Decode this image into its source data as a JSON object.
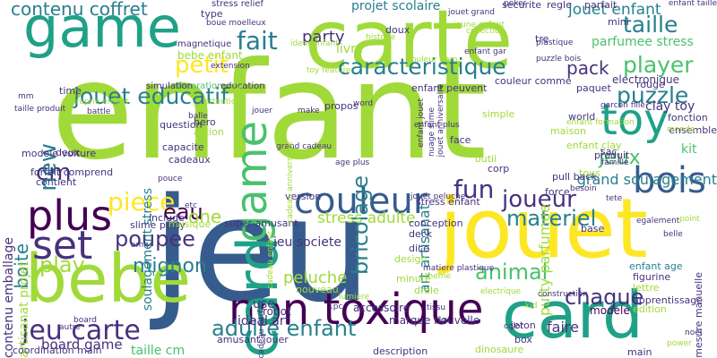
{
  "word_cloud": {
    "palette": {
      "yellow": "#fde725",
      "lime": "#a0da39",
      "green": "#4ac16d",
      "teal": "#1fa187",
      "cyan": "#277f8e",
      "blue": "#365c8d",
      "indigo": "#46327e",
      "purple": "#440154"
    },
    "words": [
      {
        "text": "enfant",
        "color": "lime"
      },
      {
        "text": "jeu",
        "color": "blue"
      },
      {
        "text": "game",
        "color": "teal"
      },
      {
        "text": "carte",
        "color": "lime"
      },
      {
        "text": "jouet",
        "color": "yellow"
      },
      {
        "text": "card",
        "color": "teal"
      },
      {
        "text": "bebe",
        "color": "lime"
      },
      {
        "text": "non toxique",
        "color": "purple"
      },
      {
        "text": "plus",
        "color": "purple"
      },
      {
        "text": "couleur",
        "color": "blue"
      },
      {
        "text": "bois",
        "color": "blue"
      },
      {
        "text": "toy",
        "color": "teal"
      },
      {
        "text": "card",
        "color": "teal"
      },
      {
        "text": "jeu carte",
        "color": "indigo"
      },
      {
        "text": "set",
        "color": "indigo"
      },
      {
        "text": "jouet educatif",
        "color": "cyan"
      },
      {
        "text": "caracteristique",
        "color": "cyan"
      },
      {
        "text": "game",
        "color": "green"
      },
      {
        "text": "taille",
        "color": "cyan"
      },
      {
        "text": "player",
        "color": "green"
      },
      {
        "text": "puzzle",
        "color": "cyan"
      },
      {
        "text": "fun",
        "color": "indigo"
      },
      {
        "text": "joueur",
        "color": "indigo"
      },
      {
        "text": "contenu coffret",
        "color": "cyan"
      },
      {
        "text": "fait",
        "color": "cyan"
      },
      {
        "text": "petit",
        "color": "yellow"
      },
      {
        "text": "piece",
        "color": "yellow"
      },
      {
        "text": "poupee",
        "color": "indigo"
      },
      {
        "text": "play",
        "color": "lime"
      },
      {
        "text": "materiel",
        "color": "cyan"
      },
      {
        "text": "mignon",
        "color": "cyan"
      },
      {
        "text": "animal",
        "color": "green"
      },
      {
        "text": "chaque",
        "color": "indigo"
      },
      {
        "text": "adulte enfant",
        "color": "cyan"
      },
      {
        "text": "eau",
        "color": "purple"
      },
      {
        "text": "cm",
        "color": "indigo"
      },
      {
        "text": "new",
        "color": "cyan"
      },
      {
        "text": "boite",
        "color": "cyan"
      },
      {
        "text": "pack",
        "color": "indigo"
      },
      {
        "text": "jeux",
        "color": "green"
      },
      {
        "text": "bricolage",
        "color": "cyan"
      },
      {
        "text": "party",
        "color": "indigo"
      },
      {
        "text": "jouet enfant",
        "color": "cyan"
      },
      {
        "text": "one",
        "color": "lime"
      },
      {
        "text": "ideal art",
        "color": "indigo"
      },
      {
        "text": "peluche",
        "color": "lime"
      },
      {
        "text": "stress adulte",
        "color": "lime"
      },
      {
        "text": "board game",
        "color": "indigo"
      },
      {
        "text": "taille cm",
        "color": "green"
      },
      {
        "text": "clay toy",
        "color": "indigo"
      },
      {
        "text": "projet scolaire",
        "color": "cyan"
      },
      {
        "text": "art artisanat",
        "color": "cyan"
      },
      {
        "text": "putty parfumee",
        "color": "lime"
      },
      {
        "text": "parfumee stress",
        "color": "green"
      },
      {
        "text": "soulagement stress",
        "color": "cyan"
      },
      {
        "text": "livre",
        "color": "lime"
      },
      {
        "text": "use",
        "color": "indigo"
      },
      {
        "text": "faire",
        "color": "indigo"
      },
      {
        "text": "grand soulagement",
        "color": "cyan"
      },
      {
        "text": "kit",
        "color": "green"
      },
      {
        "text": "contenu emballage",
        "color": "indigo"
      },
      {
        "text": "artisanat projet",
        "color": "lime"
      },
      {
        "text": "jeu societe",
        "color": "indigo"
      },
      {
        "text": "modele",
        "color": "purple"
      },
      {
        "text": "robot",
        "color": "indigo"
      },
      {
        "text": "accessoire",
        "color": "indigo"
      },
      {
        "text": "marque nouvelle",
        "color": "indigo"
      },
      {
        "text": "description",
        "color": "indigo"
      },
      {
        "text": "stress relief",
        "color": "indigo"
      },
      {
        "text": "magnetique",
        "color": "indigo"
      },
      {
        "text": "bebe enfant",
        "color": "lime"
      },
      {
        "text": "decoration",
        "color": "green"
      },
      {
        "text": "education",
        "color": "indigo"
      },
      {
        "text": "simulation",
        "color": "indigo"
      },
      {
        "text": "electronique",
        "color": "indigo"
      },
      {
        "text": "fonction",
        "color": "indigo"
      },
      {
        "text": "ensemble",
        "color": "indigo"
      },
      {
        "text": "produit",
        "color": "indigo"
      },
      {
        "text": "apprentissage",
        "color": "indigo"
      },
      {
        "text": "mesure manuelle",
        "color": "indigo"
      },
      {
        "text": "figurine",
        "color": "indigo"
      },
      {
        "text": "edition",
        "color": "lime"
      },
      {
        "text": "lettre",
        "color": "lime"
      },
      {
        "text": "dinosaure",
        "color": "lime"
      },
      {
        "text": "tous",
        "color": "lime"
      },
      {
        "text": "pull back",
        "color": "indigo"
      },
      {
        "text": "force",
        "color": "indigo"
      },
      {
        "text": "enfant age",
        "color": "cyan"
      },
      {
        "text": "slime putty",
        "color": "indigo"
      },
      {
        "text": "super amusant",
        "color": "indigo"
      },
      {
        "text": "cadeaux",
        "color": "indigo"
      },
      {
        "text": "capacite",
        "color": "indigo"
      },
      {
        "text": "question",
        "color": "indigo"
      },
      {
        "text": "deck",
        "color": "indigo"
      },
      {
        "text": "dice",
        "color": "indigo"
      },
      {
        "text": "design",
        "color": "lime"
      },
      {
        "text": "minute",
        "color": "lime"
      },
      {
        "text": "drole",
        "color": "lime"
      },
      {
        "text": "nouveau",
        "color": "lime"
      },
      {
        "text": "jeton",
        "color": "indigo"
      },
      {
        "text": "box",
        "color": "indigo"
      },
      {
        "text": "main",
        "color": "indigo"
      },
      {
        "text": "propos",
        "color": "indigo"
      },
      {
        "text": "forfait comprend",
        "color": "indigo"
      },
      {
        "text": "modele voiture",
        "color": "indigo"
      },
      {
        "text": "coordination main",
        "color": "indigo"
      },
      {
        "text": "amusant jouer",
        "color": "indigo"
      },
      {
        "text": "conception",
        "color": "indigo"
      },
      {
        "text": "stress enfant",
        "color": "indigo"
      },
      {
        "text": "base",
        "color": "indigo"
      },
      {
        "text": "version",
        "color": "indigo"
      },
      {
        "text": "include",
        "color": "indigo"
      },
      {
        "text": "contient",
        "color": "indigo"
      },
      {
        "text": "simple",
        "color": "lime"
      },
      {
        "text": "couleur comme",
        "color": "indigo"
      },
      {
        "text": "enfant peuvent",
        "color": "indigo"
      },
      {
        "text": "securite",
        "color": "indigo"
      },
      {
        "text": "regle",
        "color": "indigo"
      },
      {
        "text": "parfait",
        "color": "indigo"
      },
      {
        "text": "doux",
        "color": "indigo"
      },
      {
        "text": "tre",
        "color": "indigo"
      },
      {
        "text": "mini",
        "color": "indigo"
      },
      {
        "text": "hero",
        "color": "indigo"
      },
      {
        "text": "action",
        "color": "lime"
      },
      {
        "text": "deux",
        "color": "indigo"
      },
      {
        "text": "type",
        "color": "indigo"
      },
      {
        "text": "time",
        "color": "indigo"
      },
      {
        "text": "world",
        "color": "indigo"
      },
      {
        "text": "face",
        "color": "indigo"
      },
      {
        "text": "outil",
        "color": "lime"
      },
      {
        "text": "corp",
        "color": "indigo"
      },
      {
        "text": "sac",
        "color": "indigo"
      },
      {
        "text": "maison",
        "color": "lime"
      },
      {
        "text": "enfant clay",
        "color": "lime"
      },
      {
        "text": "rouge",
        "color": "indigo"
      },
      {
        "text": "paquet",
        "color": "indigo"
      },
      {
        "text": "musique",
        "color": "lime"
      },
      {
        "text": "poker",
        "color": "indigo"
      },
      {
        "text": "battle",
        "color": "indigo"
      },
      {
        "text": "histoire",
        "color": "lime"
      },
      {
        "text": "collection",
        "color": "lime"
      },
      {
        "text": "monde",
        "color": "lime"
      },
      {
        "text": "famille",
        "color": "indigo"
      },
      {
        "text": "point",
        "color": "lime"
      },
      {
        "text": "balle",
        "color": "indigo"
      },
      {
        "text": "etc",
        "color": "indigo"
      },
      {
        "text": "tissu",
        "color": "indigo"
      },
      {
        "text": "jouer",
        "color": "indigo"
      },
      {
        "text": "make",
        "color": "indigo"
      },
      {
        "text": "word",
        "color": "indigo"
      },
      {
        "text": "mm",
        "color": "indigo"
      },
      {
        "text": "ami",
        "color": "indigo"
      },
      {
        "text": "autre",
        "color": "indigo"
      },
      {
        "text": "board",
        "color": "indigo"
      },
      {
        "text": "kid",
        "color": "lime"
      },
      {
        "text": "power",
        "color": "lime"
      },
      {
        "text": "noel",
        "color": "indigo"
      },
      {
        "text": "color",
        "color": "indigo"
      },
      {
        "text": "pouce",
        "color": "indigo"
      },
      {
        "text": "tete",
        "color": "indigo"
      },
      {
        "text": "besoin",
        "color": "indigo"
      },
      {
        "text": "lumiere",
        "color": "lime"
      },
      {
        "text": "1x",
        "color": "indigo"
      },
      {
        "text": "age plus",
        "color": "indigo"
      },
      {
        "text": "cadeau enfant",
        "color": "lime"
      },
      {
        "text": "cadeau parfait",
        "color": "indigo"
      },
      {
        "text": "grand cadeau",
        "color": "indigo"
      },
      {
        "text": "extension",
        "color": "indigo"
      },
      {
        "text": "boue moelleux",
        "color": "indigo"
      },
      {
        "text": "enfant jouet",
        "color": "indigo"
      },
      {
        "text": "jouet anniversaire",
        "color": "indigo"
      },
      {
        "text": "jouet peluche",
        "color": "indigo"
      },
      {
        "text": "ideal enfant",
        "color": "lime"
      },
      {
        "text": "toy feature",
        "color": "lime"
      },
      {
        "text": "jeune enfant",
        "color": "lime"
      },
      {
        "text": "nuage slime",
        "color": "indigo"
      },
      {
        "text": "plastique",
        "color": "indigo"
      },
      {
        "text": "enfant plus",
        "color": "indigo"
      },
      {
        "text": "enfant formation",
        "color": "lime"
      },
      {
        "text": "puzzle bois",
        "color": "indigo"
      },
      {
        "text": "cadeau anniversaire",
        "color": "lime"
      },
      {
        "text": "art",
        "color": "lime"
      },
      {
        "text": "garcon fille",
        "color": "indigo"
      },
      {
        "text": "matiere plastique",
        "color": "indigo"
      },
      {
        "text": "construction",
        "color": "indigo"
      },
      {
        "text": "electrique",
        "color": "lime"
      },
      {
        "text": "theme",
        "color": "lime"
      },
      {
        "text": "egalement",
        "color": "indigo"
      },
      {
        "text": "belle",
        "color": "indigo"
      },
      {
        "text": "approprie enfant",
        "color": "lime"
      },
      {
        "text": "taille produit",
        "color": "indigo"
      },
      {
        "text": "attention",
        "color": "lime"
      },
      {
        "text": "jouet grand",
        "color": "indigo"
      },
      {
        "text": "enfant gar",
        "color": "indigo"
      },
      {
        "text": "enfant taille",
        "color": "indigo"
      },
      {
        "text": "1pc",
        "color": "indigo"
      },
      {
        "text": "couleur nom",
        "color": "lime"
      }
    ]
  }
}
